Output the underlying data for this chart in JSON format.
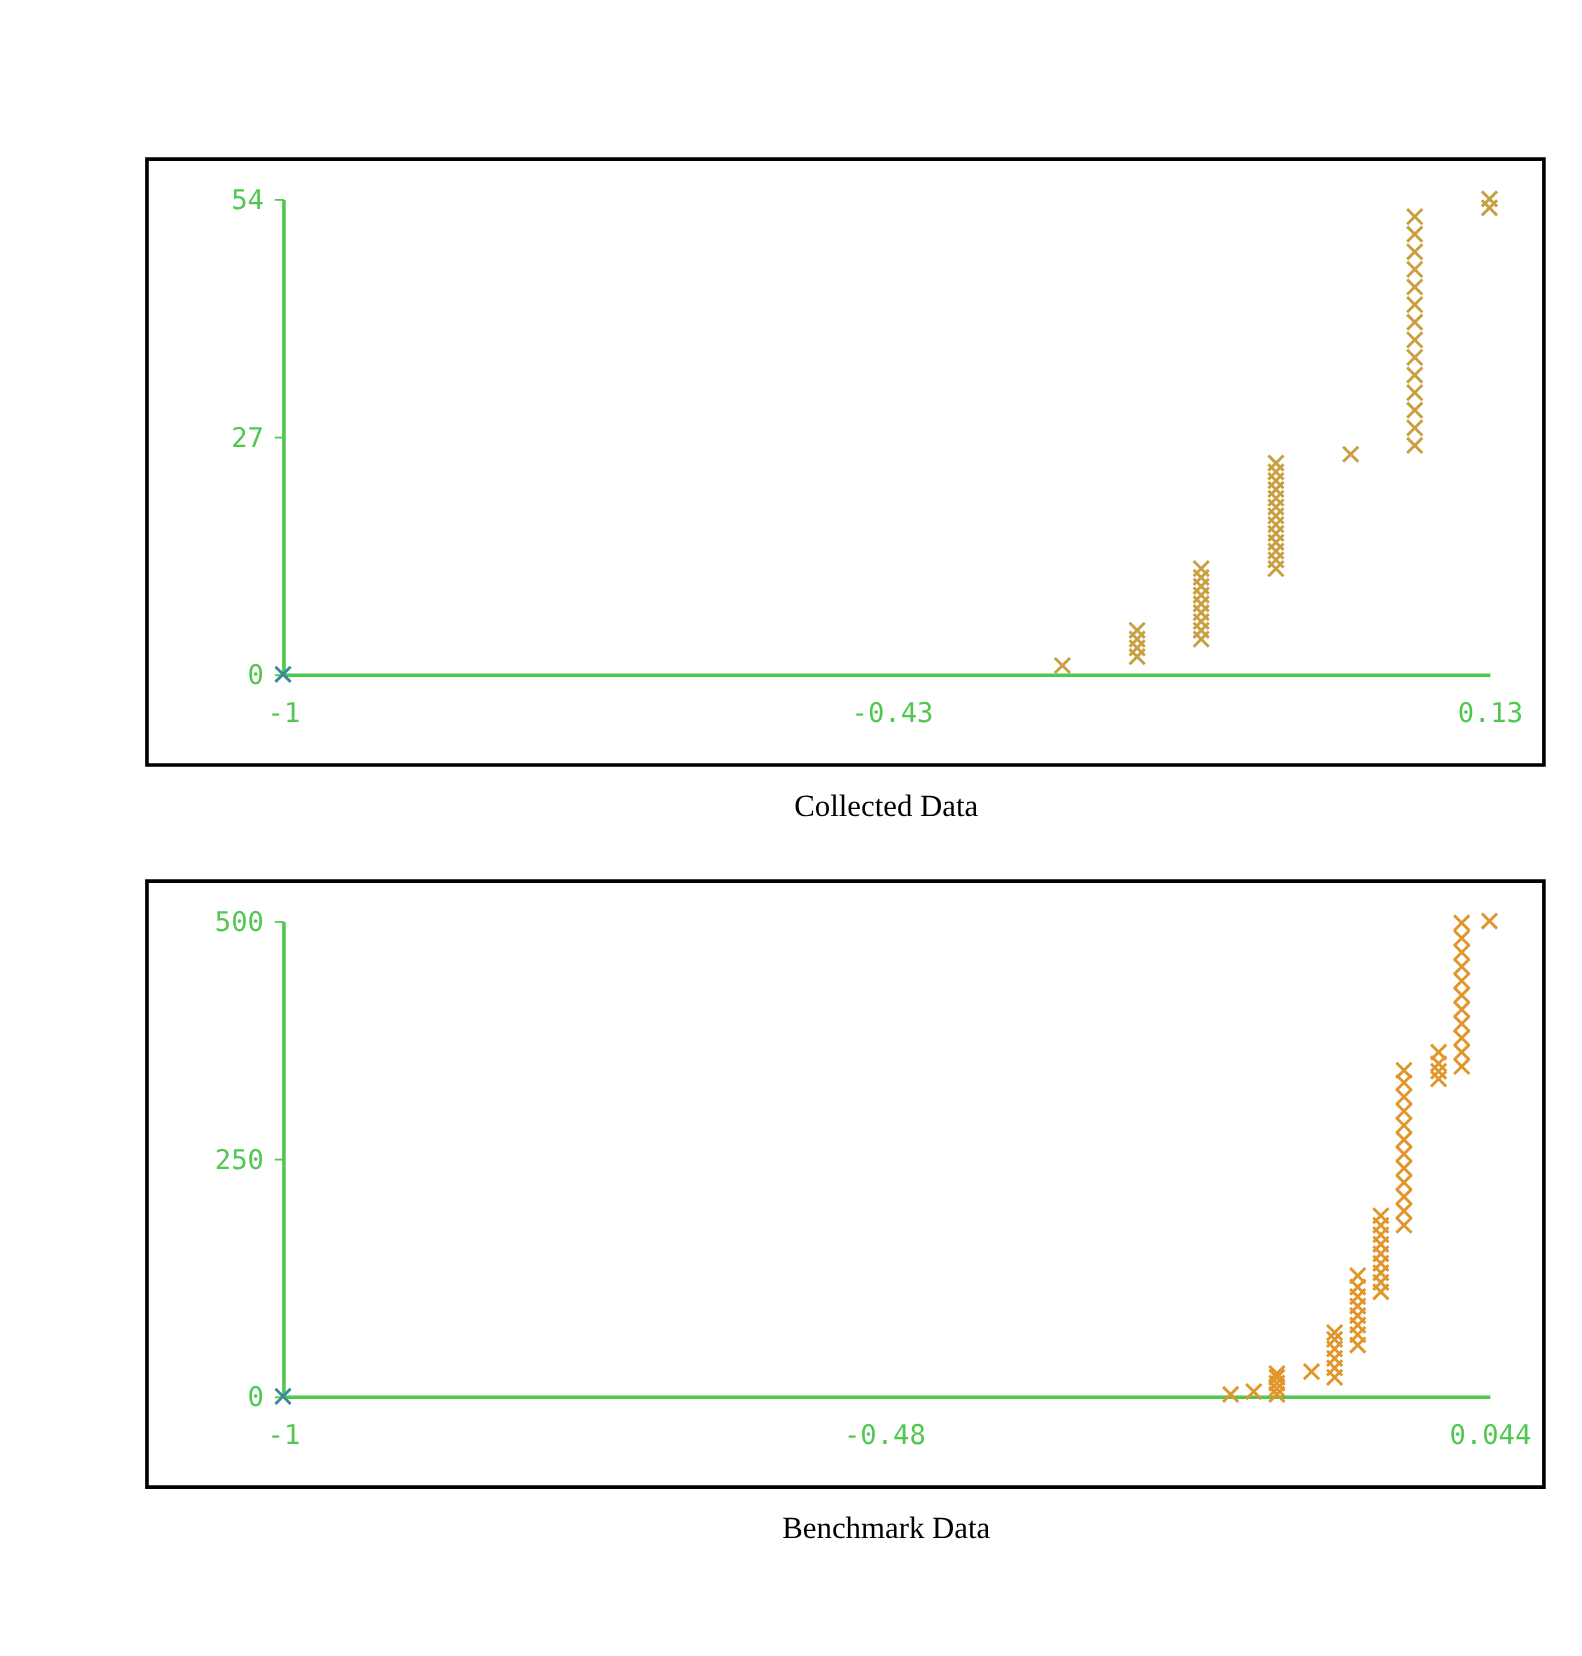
{
  "chart_data": [
    {
      "type": "scatter",
      "title": "Collected Data",
      "marker": "cross",
      "grid": false,
      "xlim": [
        -1,
        0.13
      ],
      "xticks": [
        -1,
        -0.43,
        0.13
      ],
      "ylim": [
        0,
        54
      ],
      "yticks": [
        0,
        27,
        54
      ],
      "series": [
        {
          "color": "#3a8a9a",
          "x": [
            -1
          ],
          "values": [
            0
          ]
        },
        {
          "color": "#c8a040",
          "x": [
            -0.27,
            -0.2,
            -0.2,
            -0.2,
            -0.2,
            -0.14,
            -0.14,
            -0.14,
            -0.14,
            -0.14,
            -0.14,
            -0.14,
            -0.14,
            -0.14,
            -0.07,
            -0.07,
            -0.07,
            -0.07,
            -0.07,
            -0.07,
            -0.07,
            -0.07,
            -0.07,
            -0.07,
            -0.07,
            -0.07,
            -0.07,
            0,
            0.06,
            0.06,
            0.06,
            0.06,
            0.06,
            0.06,
            0.06,
            0.06,
            0.06,
            0.06,
            0.06,
            0.06,
            0.06,
            0.06,
            0.13,
            0.13
          ],
          "values": [
            1,
            2,
            3,
            4,
            5,
            4,
            5,
            6,
            7,
            8,
            9,
            10,
            11,
            12,
            12,
            13,
            14,
            15,
            16,
            17,
            18,
            19,
            20,
            21,
            22,
            23,
            24,
            25,
            26,
            28,
            30,
            32,
            34,
            36,
            38,
            40,
            42,
            44,
            46,
            48,
            50,
            52,
            53,
            54
          ]
        }
      ]
    },
    {
      "type": "scatter",
      "title": "Benchmark Data",
      "marker": "cross",
      "grid": false,
      "xlim": [
        -1,
        0.044
      ],
      "xticks": [
        -1,
        -0.48,
        0.044
      ],
      "ylim": [
        0,
        500
      ],
      "yticks": [
        0,
        250,
        500
      ],
      "series": [
        {
          "color": "#3a8a9a",
          "x": [
            -1
          ],
          "values": [
            0
          ]
        },
        {
          "color": "#e0962a",
          "x": [
            -0.18,
            -0.16,
            -0.14,
            -0.14,
            -0.14,
            -0.14,
            -0.14,
            -0.11,
            -0.09,
            -0.09,
            -0.09,
            -0.09,
            -0.09,
            -0.09,
            -0.07,
            -0.07,
            -0.07,
            -0.07,
            -0.07,
            -0.07,
            -0.07,
            -0.07,
            -0.05,
            -0.05,
            -0.05,
            -0.05,
            -0.05,
            -0.05,
            -0.05,
            -0.05,
            -0.05,
            -0.03,
            -0.03,
            -0.03,
            -0.03,
            -0.03,
            -0.03,
            -0.03,
            -0.03,
            -0.03,
            -0.03,
            -0.03,
            -0.03,
            0,
            0,
            0,
            0,
            0.02,
            0.02,
            0.02,
            0.02,
            0.02,
            0.02,
            0.02,
            0.02,
            0.02,
            0.02,
            0.02,
            0.044
          ],
          "values": [
            2,
            5,
            2,
            8,
            14,
            20,
            24,
            26,
            20,
            30,
            40,
            50,
            60,
            67,
            54,
            65,
            75,
            85,
            95,
            105,
            115,
            127,
            110,
            120,
            130,
            140,
            150,
            160,
            170,
            180,
            190,
            180,
            195,
            210,
            225,
            240,
            255,
            270,
            285,
            300,
            315,
            330,
            343,
            334,
            342,
            350,
            362,
            347,
            362,
            377,
            392,
            407,
            422,
            437,
            452,
            467,
            482,
            498,
            500
          ]
        }
      ]
    }
  ]
}
